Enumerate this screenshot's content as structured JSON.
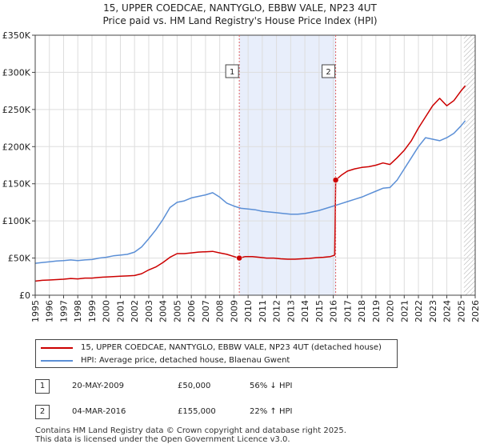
{
  "title_line1": "15, UPPER COEDCAE, NANTYGLO, EBBW VALE, NP23 4UT",
  "title_line2": "Price paid vs. HM Land Registry's House Price Index (HPI)",
  "colors": {
    "price_paid": "#cc0000",
    "hpi": "#5b8fd6",
    "shade": "#e8eefb",
    "marker_line": "#e06060",
    "hatch": "#aaaaaa",
    "grid": "#dddddd"
  },
  "chart_data": {
    "type": "line",
    "title": "Price paid vs. HM Land Registry's House Price Index (HPI)",
    "xlabel": "",
    "ylabel": "",
    "xlim": [
      1995,
      2026
    ],
    "ylim": [
      0,
      350000
    ],
    "x_ticks": [
      "1995",
      "1996",
      "1997",
      "1998",
      "1999",
      "2000",
      "2001",
      "2002",
      "2003",
      "2004",
      "2005",
      "2006",
      "2007",
      "2008",
      "2009",
      "2010",
      "2011",
      "2012",
      "2013",
      "2014",
      "2015",
      "2016",
      "2017",
      "2018",
      "2019",
      "2020",
      "2021",
      "2022",
      "2023",
      "2024",
      "2025",
      "2026"
    ],
    "y_ticks": [
      {
        "value": 0,
        "label": "£0"
      },
      {
        "value": 50000,
        "label": "£50K"
      },
      {
        "value": 100000,
        "label": "£100K"
      },
      {
        "value": 150000,
        "label": "£150K"
      },
      {
        "value": 200000,
        "label": "£200K"
      },
      {
        "value": 250000,
        "label": "£250K"
      },
      {
        "value": 300000,
        "label": "£300K"
      },
      {
        "value": 350000,
        "label": "£350K"
      }
    ],
    "shaded_range": [
      2009.38,
      2016.17
    ],
    "hatched_from": 2025.2,
    "series": [
      {
        "name": "15, UPPER COEDCAE, NANTYGLO, EBBW VALE, NP23 4UT (detached house)",
        "x": [
          1995.0,
          1995.5,
          1996.0,
          1996.5,
          1997.0,
          1997.5,
          1998.0,
          1998.5,
          1999.0,
          1999.5,
          2000.0,
          2000.5,
          2001.0,
          2001.5,
          2002.0,
          2002.5,
          2003.0,
          2003.5,
          2004.0,
          2004.5,
          2005.0,
          2005.5,
          2006.0,
          2006.5,
          2007.0,
          2007.5,
          2008.0,
          2008.5,
          2009.0,
          2009.38,
          2009.8,
          2010.3,
          2010.8,
          2011.3,
          2011.8,
          2012.3,
          2012.8,
          2013.3,
          2013.8,
          2014.3,
          2014.8,
          2015.3,
          2015.8,
          2016.1,
          2016.17,
          2016.6,
          2017.0,
          2017.5,
          2018.0,
          2018.5,
          2019.0,
          2019.5,
          2020.0,
          2020.5,
          2021.0,
          2021.5,
          2022.0,
          2022.5,
          2023.0,
          2023.5,
          2024.0,
          2024.5,
          2025.0,
          2025.3
        ],
        "values": [
          19000,
          20000,
          20500,
          21000,
          21500,
          22500,
          22000,
          23000,
          23000,
          24000,
          24500,
          25000,
          25500,
          26000,
          26500,
          29000,
          34000,
          38000,
          44000,
          51000,
          56000,
          56000,
          57000,
          58000,
          58500,
          59000,
          57000,
          55000,
          52000,
          50000,
          52000,
          52000,
          51000,
          50000,
          50000,
          49000,
          48500,
          48500,
          49000,
          49500,
          50500,
          51000,
          52000,
          54000,
          155000,
          162000,
          167000,
          170000,
          172000,
          173000,
          175000,
          178000,
          176000,
          185000,
          195000,
          208000,
          225000,
          240000,
          255000,
          265000,
          255000,
          262000,
          275000,
          282000
        ]
      },
      {
        "name": "HPI: Average price, detached house, Blaenau Gwent",
        "x": [
          1995.0,
          1995.5,
          1996.0,
          1996.5,
          1997.0,
          1997.5,
          1998.0,
          1998.5,
          1999.0,
          1999.5,
          2000.0,
          2000.5,
          2001.0,
          2001.5,
          2002.0,
          2002.5,
          2003.0,
          2003.5,
          2004.0,
          2004.5,
          2005.0,
          2005.5,
          2006.0,
          2006.5,
          2007.0,
          2007.5,
          2008.0,
          2008.5,
          2009.0,
          2009.5,
          2010.0,
          2010.5,
          2011.0,
          2011.5,
          2012.0,
          2012.5,
          2013.0,
          2013.5,
          2014.0,
          2014.5,
          2015.0,
          2015.5,
          2016.0,
          2016.5,
          2017.0,
          2017.5,
          2018.0,
          2018.5,
          2019.0,
          2019.5,
          2020.0,
          2020.5,
          2021.0,
          2021.5,
          2022.0,
          2022.5,
          2023.0,
          2023.5,
          2024.0,
          2024.5,
          2025.0,
          2025.3
        ],
        "values": [
          43000,
          44000,
          45000,
          46000,
          46500,
          47500,
          46500,
          47500,
          48000,
          50000,
          51000,
          53000,
          54000,
          55000,
          58000,
          65000,
          76000,
          88000,
          102000,
          118000,
          125000,
          127000,
          131000,
          133000,
          135000,
          138000,
          132000,
          124000,
          120000,
          117000,
          116000,
          115000,
          113000,
          112000,
          111000,
          110000,
          109000,
          109000,
          110000,
          112000,
          114000,
          117000,
          120000,
          123000,
          126000,
          129000,
          132000,
          136000,
          140000,
          144000,
          145000,
          155000,
          170000,
          185000,
          200000,
          212000,
          210000,
          208000,
          212000,
          218000,
          228000,
          235000
        ]
      }
    ],
    "annotations": [
      {
        "label": "1",
        "x": 2009.38,
        "y": 50000
      },
      {
        "label": "2",
        "x": 2016.17,
        "y": 155000
      }
    ]
  },
  "legend": {
    "items": [
      {
        "label": "15, UPPER COEDCAE, NANTYGLO, EBBW VALE, NP23 4UT (detached house)"
      },
      {
        "label": "HPI: Average price, detached house, Blaenau Gwent"
      }
    ]
  },
  "sales": [
    {
      "num": "1",
      "date": "20-MAY-2009",
      "price": "£50,000",
      "hpi": "56% ↓ HPI"
    },
    {
      "num": "2",
      "date": "04-MAR-2016",
      "price": "£155,000",
      "hpi": "22% ↑ HPI"
    }
  ],
  "footer": {
    "line1": "Contains HM Land Registry data © Crown copyright and database right 2025.",
    "line2": "This data is licensed under the Open Government Licence v3.0."
  }
}
